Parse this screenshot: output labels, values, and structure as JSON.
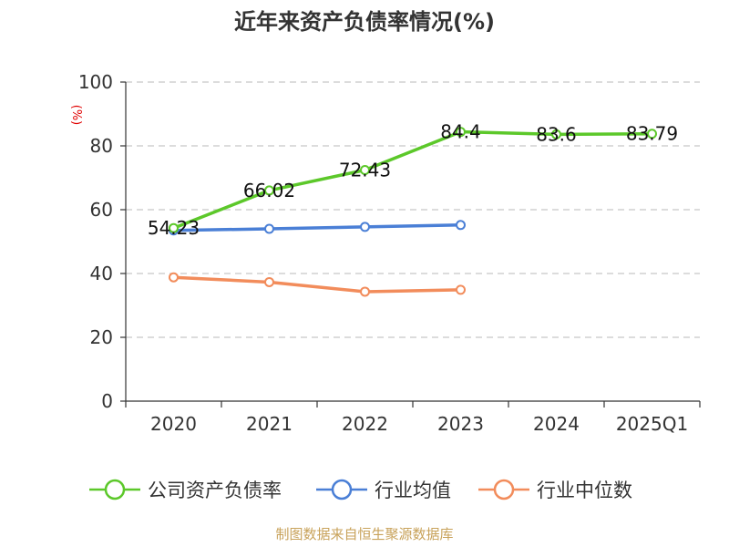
{
  "chart_data": {
    "type": "line",
    "title": "近年来资产负债率情况(%)",
    "unit_label": "(%)",
    "categories": [
      "2020",
      "2021",
      "2022",
      "2023",
      "2024",
      "2025Q1"
    ],
    "ylim": [
      0,
      100
    ],
    "yticks": [
      0,
      20,
      40,
      60,
      80,
      100
    ],
    "grid": "horizontal dashed",
    "legend_position": "bottom",
    "series": [
      {
        "name": "公司资产负债率",
        "color": "#5cc82a",
        "values": [
          54.23,
          66.02,
          72.43,
          84.4,
          83.6,
          83.79
        ],
        "labels": [
          "54.23",
          "66.02",
          "72.43",
          "84.4",
          "83.6",
          "83.79"
        ],
        "show_labels": true
      },
      {
        "name": "行业均值",
        "color": "#4a7fd6",
        "values": [
          53.5,
          54.0,
          54.6,
          55.2,
          null,
          null
        ],
        "show_labels": false
      },
      {
        "name": "行业中位数",
        "color": "#f28c5b",
        "values": [
          38.8,
          37.3,
          34.3,
          34.9,
          null,
          null
        ],
        "show_labels": false
      }
    ]
  },
  "source": "制图数据来自恒生聚源数据库"
}
